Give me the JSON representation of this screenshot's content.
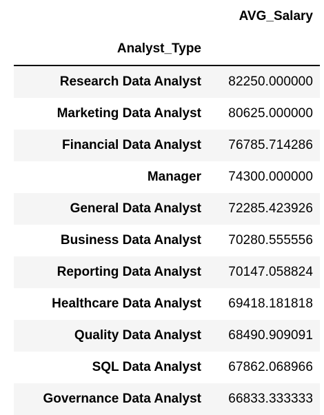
{
  "table": {
    "column_header": "AVG_Salary",
    "index_name": "Analyst_Type",
    "rows": [
      {
        "label": "Research Data Analyst",
        "value": "82250.000000"
      },
      {
        "label": "Marketing Data Analyst",
        "value": "80625.000000"
      },
      {
        "label": "Financial Data Analyst",
        "value": "76785.714286"
      },
      {
        "label": "Manager",
        "value": "74300.000000"
      },
      {
        "label": "General Data Analyst",
        "value": "72285.423926"
      },
      {
        "label": "Business Data Analyst",
        "value": "70280.555556"
      },
      {
        "label": "Reporting Data Analyst",
        "value": "70147.058824"
      },
      {
        "label": "Healthcare Data Analyst",
        "value": "69418.181818"
      },
      {
        "label": "Quality Data Analyst",
        "value": "68490.909091"
      },
      {
        "label": "SQL Data Analyst",
        "value": "67862.068966"
      },
      {
        "label": "Governance Data Analyst",
        "value": "66833.333333"
      }
    ]
  }
}
